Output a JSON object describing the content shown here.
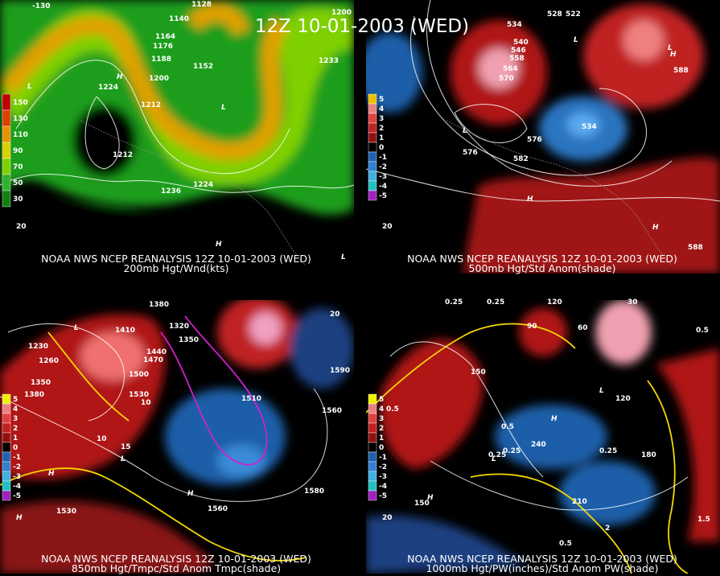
{
  "title": "12Z 10-01-2003 (WED)",
  "panels": [
    {
      "source": "NOAA NWS NCEP REANALYSIS 12Z 10-01-2003 (WED)",
      "caption": "200mb Hgt/Wnd(kts)",
      "legend": [
        "150",
        "130",
        "110",
        "90",
        "70",
        "50",
        "30"
      ],
      "labels": [
        "1140",
        "1128",
        "1164",
        "1176",
        "1188",
        "1200",
        "1224",
        "1212",
        "1152",
        "1236",
        "1224",
        "1212",
        "1200",
        "1233",
        "L",
        "L",
        "H",
        "H",
        "L",
        "20",
        "-130"
      ]
    },
    {
      "source": "NOAA NWS NCEP REANALYSIS 12Z 10-01-2003 (WED)",
      "caption": "500mb Hgt/Std Anom(shade)",
      "legend": [
        "5",
        "4",
        "3",
        "2",
        "1",
        "0",
        "-1",
        "-2",
        "-3",
        "-4",
        "-5"
      ],
      "labels": [
        "528",
        "522",
        "534",
        "540",
        "546",
        "558",
        "564",
        "570",
        "534",
        "576",
        "582",
        "576",
        "588",
        "588",
        "L",
        "L",
        "L",
        "H",
        "H",
        "H",
        "20"
      ]
    },
    {
      "source": "NOAA NWS NCEP REANALYSIS 12Z 10-01-2003 (WED)",
      "caption": "850mb Hgt/Tmpc/Std Anom Tmpc(shade)",
      "legend": [
        "5",
        "4",
        "3",
        "2",
        "1",
        "0",
        "-1",
        "-2",
        "-3",
        "-4",
        "-5"
      ],
      "labels": [
        "1380",
        "1410",
        "1320",
        "1350",
        "1440",
        "1470",
        "1500",
        "1530",
        "1230",
        "1260",
        "1350",
        "1380",
        "1590",
        "1560",
        "1560",
        "1530",
        "1510",
        "1580",
        "10",
        "10",
        "15",
        "L",
        "L",
        "H",
        "H",
        "H",
        "20"
      ]
    },
    {
      "source": "NOAA NWS NCEP REANALYSIS 12Z 10-01-2003 (WED)",
      "caption": "1000mb Hgt/PW(inches)/Std Anom PW(shade)",
      "legend": [
        "5",
        "4",
        "3",
        "2",
        "1",
        "0",
        "-1",
        "-2",
        "-3",
        "-4",
        "-5"
      ],
      "labels": [
        "0.25",
        "0.25",
        "120",
        "90",
        "60",
        "30",
        "0.5",
        "0.25",
        "0.25",
        "150",
        "240",
        "210",
        "180",
        "120",
        "0.5",
        "0.25",
        "0.5",
        "2",
        "1.5",
        "0.5",
        "150",
        "L",
        "L",
        "H",
        "H",
        "20"
      ]
    }
  ]
}
